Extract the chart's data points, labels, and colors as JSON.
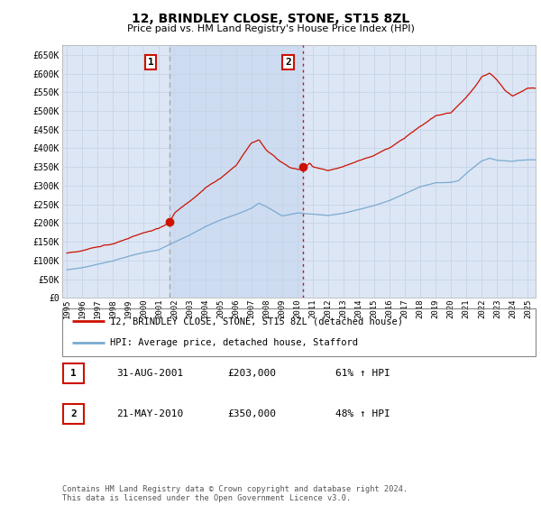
{
  "title": "12, BRINDLEY CLOSE, STONE, ST15 8ZL",
  "subtitle": "Price paid vs. HM Land Registry's House Price Index (HPI)",
  "ylabel_ticks": [
    "£0",
    "£50K",
    "£100K",
    "£150K",
    "£200K",
    "£250K",
    "£300K",
    "£350K",
    "£400K",
    "£450K",
    "£500K",
    "£550K",
    "£600K",
    "£650K"
  ],
  "ytick_values": [
    0,
    50000,
    100000,
    150000,
    200000,
    250000,
    300000,
    350000,
    400000,
    450000,
    500000,
    550000,
    600000,
    650000
  ],
  "ylim": [
    0,
    675000
  ],
  "xlim_start": 1994.7,
  "xlim_end": 2025.5,
  "grid_color": "#c8d4e8",
  "plot_bg_color": "#dce6f5",
  "shade_color": "#c8d8f0",
  "hpi_line_color": "#7aaad0",
  "price_line_color": "#cc1100",
  "purchase1_x": 2001.667,
  "purchase1_y": 203000,
  "purchase2_x": 2010.389,
  "purchase2_y": 350000,
  "vline1_color": "#aaaaaa",
  "vline1_style": "--",
  "vline2_color": "#cc1100",
  "vline2_style": ":",
  "legend_label_price": "12, BRINDLEY CLOSE, STONE, ST15 8ZL (detached house)",
  "legend_label_hpi": "HPI: Average price, detached house, Stafford",
  "table_row1": [
    "1",
    "31-AUG-2001",
    "£203,000",
    "61% ↑ HPI"
  ],
  "table_row2": [
    "2",
    "21-MAY-2010",
    "£350,000",
    "48% ↑ HPI"
  ],
  "footer": "Contains HM Land Registry data © Crown copyright and database right 2024.\nThis data is licensed under the Open Government Licence v3.0.",
  "xtick_years": [
    1995,
    1996,
    1997,
    1998,
    1999,
    2000,
    2001,
    2002,
    2003,
    2004,
    2005,
    2006,
    2007,
    2008,
    2009,
    2010,
    2011,
    2012,
    2013,
    2014,
    2015,
    2016,
    2017,
    2018,
    2019,
    2020,
    2021,
    2022,
    2023,
    2024,
    2025
  ],
  "anno_box_color": "#cc1100",
  "marker_color": "#cc1100"
}
